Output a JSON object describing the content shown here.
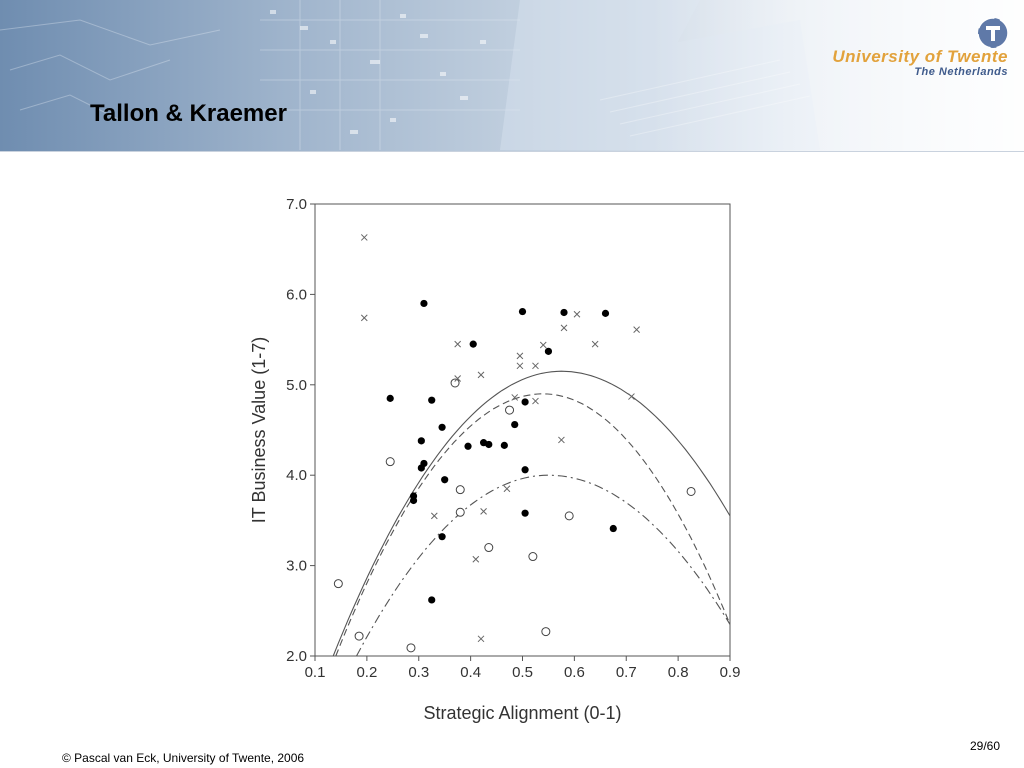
{
  "slide": {
    "title": "Tallon & Kraemer",
    "page_number": "29/60"
  },
  "branding": {
    "university_name": "University of Twente",
    "country": "The Netherlands",
    "logo_icon": "university-of-twente-logo-icon",
    "name_color": "#e2a23c",
    "country_color": "#3f5b8c"
  },
  "footer": {
    "copyright": "© Pascal van Eck, University of Twente, 2006"
  },
  "chart_data": {
    "type": "scatter",
    "xlabel": "Strategic Alignment (0-1)",
    "ylabel": "IT Business Value (1-7)",
    "xlim": [
      0.1,
      0.9
    ],
    "ylim": [
      2.0,
      7.0
    ],
    "x_ticks": [
      "0.1",
      "0.2",
      "0.3",
      "0.4",
      "0.5",
      "0.6",
      "0.7",
      "0.8",
      "0.9"
    ],
    "y_ticks": [
      "2.0",
      "3.0",
      "4.0",
      "5.0",
      "6.0",
      "7.0"
    ],
    "grid": false,
    "series": [
      {
        "marker": "filled-circle",
        "points": [
          [
            0.31,
            5.9
          ],
          [
            0.245,
            4.85
          ],
          [
            0.325,
            4.83
          ],
          [
            0.345,
            4.53
          ],
          [
            0.305,
            4.38
          ],
          [
            0.305,
            4.08
          ],
          [
            0.31,
            4.13
          ],
          [
            0.29,
            3.77
          ],
          [
            0.29,
            3.72
          ],
          [
            0.35,
            3.95
          ],
          [
            0.345,
            3.32
          ],
          [
            0.325,
            2.62
          ],
          [
            0.405,
            5.45
          ],
          [
            0.395,
            4.32
          ],
          [
            0.425,
            4.36
          ],
          [
            0.435,
            4.34
          ],
          [
            0.465,
            4.33
          ],
          [
            0.485,
            4.56
          ],
          [
            0.5,
            5.81
          ],
          [
            0.505,
            4.81
          ],
          [
            0.505,
            4.06
          ],
          [
            0.505,
            3.58
          ],
          [
            0.55,
            5.37
          ],
          [
            0.58,
            5.8
          ],
          [
            0.66,
            5.79
          ],
          [
            0.675,
            3.41
          ]
        ]
      },
      {
        "marker": "open-circle",
        "points": [
          [
            0.145,
            2.8
          ],
          [
            0.185,
            2.22
          ],
          [
            0.245,
            4.15
          ],
          [
            0.285,
            2.09
          ],
          [
            0.37,
            5.02
          ],
          [
            0.38,
            3.84
          ],
          [
            0.38,
            3.59
          ],
          [
            0.435,
            3.2
          ],
          [
            0.475,
            4.72
          ],
          [
            0.52,
            3.1
          ],
          [
            0.545,
            2.27
          ],
          [
            0.59,
            3.55
          ],
          [
            0.825,
            3.82
          ]
        ]
      },
      {
        "marker": "cross",
        "points": [
          [
            0.195,
            6.63
          ],
          [
            0.195,
            5.74
          ],
          [
            0.375,
            5.45
          ],
          [
            0.375,
            5.07
          ],
          [
            0.42,
            5.11
          ],
          [
            0.495,
            5.32
          ],
          [
            0.495,
            5.21
          ],
          [
            0.525,
            5.21
          ],
          [
            0.54,
            5.44
          ],
          [
            0.58,
            5.63
          ],
          [
            0.605,
            5.78
          ],
          [
            0.64,
            5.45
          ],
          [
            0.72,
            5.61
          ],
          [
            0.71,
            4.87
          ],
          [
            0.485,
            4.86
          ],
          [
            0.525,
            4.82
          ],
          [
            0.575,
            4.39
          ],
          [
            0.47,
            3.85
          ],
          [
            0.425,
            3.6
          ],
          [
            0.33,
            3.55
          ],
          [
            0.41,
            3.07
          ],
          [
            0.42,
            2.19
          ]
        ]
      }
    ],
    "curves": [
      {
        "line_style": "solid",
        "vertex": [
          0.575,
          5.15
        ],
        "endpoints": [
          [
            0.135,
            2.0
          ],
          [
            0.9,
            3.55
          ]
        ]
      },
      {
        "line_style": "dashed",
        "vertex": [
          0.54,
          4.9
        ],
        "endpoints": [
          [
            0.14,
            2.0
          ],
          [
            0.9,
            2.35
          ]
        ]
      },
      {
        "line_style": "dash-dot",
        "vertex": [
          0.55,
          4.0
        ],
        "endpoints": [
          [
            0.18,
            2.0
          ],
          [
            0.9,
            2.35
          ]
        ]
      }
    ]
  }
}
